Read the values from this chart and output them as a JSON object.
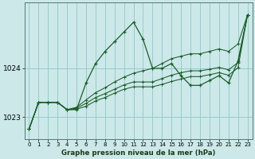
{
  "title": "Graphe pression niveau de la mer (hPa)",
  "bg_color": "#cce8e8",
  "grid_color": "#99cccc",
  "line_color": "#1a5c2a",
  "xlim": [
    -0.5,
    23.5
  ],
  "ylim": [
    1022.55,
    1025.35
  ],
  "yticks": [
    1023,
    1024
  ],
  "xticks": [
    0,
    1,
    2,
    3,
    4,
    5,
    6,
    7,
    8,
    9,
    10,
    11,
    12,
    13,
    14,
    15,
    16,
    17,
    18,
    19,
    20,
    21,
    22,
    23
  ],
  "series_main": [
    1022.75,
    1023.3,
    1023.3,
    1023.3,
    1023.15,
    1023.15,
    1023.7,
    1024.1,
    1024.35,
    1024.55,
    1024.75,
    1024.95,
    1024.6,
    1024.0,
    1024.0,
    1024.1,
    1023.85,
    1023.65,
    1023.65,
    1023.75,
    1023.85,
    1023.7,
    1024.15,
    1025.1
  ],
  "series_upper": [
    1022.75,
    1023.3,
    1023.3,
    1023.3,
    1023.15,
    1023.2,
    1023.35,
    1023.5,
    1023.6,
    1023.72,
    1023.82,
    1023.9,
    1023.95,
    1024.0,
    1024.1,
    1024.2,
    1024.25,
    1024.3,
    1024.3,
    1024.35,
    1024.4,
    1024.35,
    1024.5,
    1025.1
  ],
  "series_mid": [
    1022.75,
    1023.3,
    1023.3,
    1023.3,
    1023.15,
    1023.18,
    1023.28,
    1023.4,
    1023.48,
    1023.57,
    1023.66,
    1023.72,
    1023.72,
    1023.72,
    1023.79,
    1023.86,
    1023.91,
    1023.95,
    1023.95,
    1023.98,
    1024.02,
    1023.97,
    1024.12,
    1025.1
  ],
  "series_lower": [
    1022.75,
    1023.3,
    1023.3,
    1023.3,
    1023.15,
    1023.16,
    1023.22,
    1023.33,
    1023.4,
    1023.49,
    1023.57,
    1023.62,
    1023.62,
    1023.62,
    1023.67,
    1023.73,
    1023.78,
    1023.83,
    1023.83,
    1023.87,
    1023.91,
    1023.86,
    1024.01,
    1025.1
  ]
}
